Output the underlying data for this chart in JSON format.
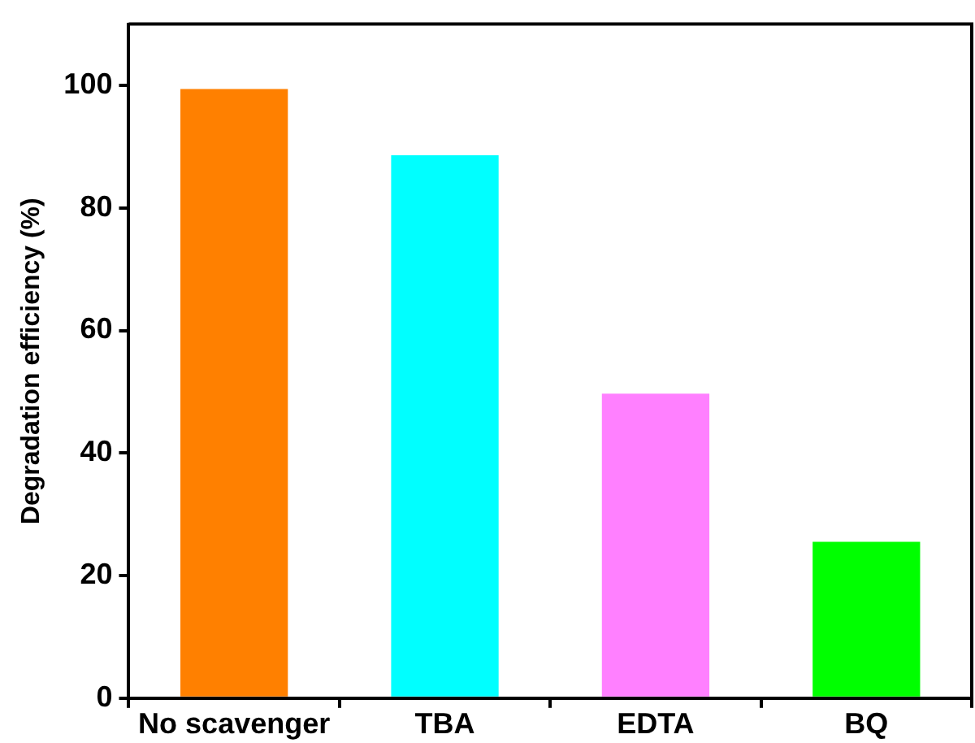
{
  "chart_data": {
    "type": "bar",
    "ylabel": "Degradation efficiency (%)",
    "categories": [
      "No scavenger",
      "TBA",
      "EDTA",
      "BQ"
    ],
    "values": [
      99.4,
      88.6,
      49.7,
      25.5
    ],
    "colors": [
      "#ff8000",
      "#00ffff",
      "#ff80ff",
      "#00ff00"
    ],
    "ylim": [
      0,
      110
    ],
    "yticks": [
      0,
      20,
      40,
      60,
      80,
      100
    ],
    "grid": false,
    "legend": false
  }
}
